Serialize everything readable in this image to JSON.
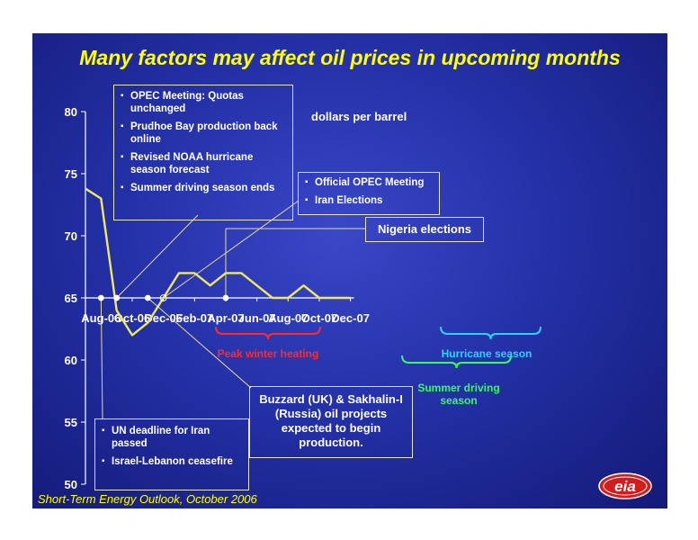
{
  "title": "Many factors may affect oil prices in upcoming months",
  "source": "Short-Term Energy Outlook, October 2006",
  "logo_text": "eia",
  "colors": {
    "background": "#2431a8",
    "title": "#ffff00",
    "line": "#f0e860",
    "axis": "#ffffff",
    "peak_winter": "#ff2a2a",
    "hurricane": "#2ad4ff",
    "summer": "#33ff55"
  },
  "chart_data": {
    "type": "line",
    "title": "Many factors may affect oil prices in upcoming months",
    "ylabel": "dollars per barrel",
    "ylim": [
      50,
      80
    ],
    "yticks": [
      50,
      55,
      60,
      65,
      70,
      75,
      80
    ],
    "x_tick_labels": [
      "Aug-06",
      "Oct-06",
      "Dec-06",
      "Feb-07",
      "Apr-07",
      "Jun-07",
      "Aug-07",
      "Oct-07",
      "Dec-07"
    ],
    "x_months": [
      "Jul-06",
      "Aug-06",
      "Sep-06",
      "Oct-06",
      "Nov-06",
      "Dec-06",
      "Jan-07",
      "Feb-07",
      "Mar-07",
      "Apr-07",
      "May-07",
      "Jun-07",
      "Jul-07",
      "Aug-07",
      "Sep-07",
      "Oct-07",
      "Nov-07",
      "Dec-07"
    ],
    "series": [
      {
        "values": [
          73.8,
          73.0,
          64.0,
          62.0,
          63.0,
          65.0,
          67.0,
          67.0,
          66.0,
          67.0,
          67.0,
          66.0,
          65.0,
          65.0,
          66.0,
          65.0,
          65.0,
          65.0
        ]
      }
    ],
    "events_marker_months": [
      "Aug-06",
      "Sep-06",
      "Nov-06",
      "Apr-07"
    ],
    "grid": false
  },
  "callouts": {
    "box1": [
      "OPEC Meeting: Quotas unchanged",
      "Prudhoe Bay production back online",
      "Revised NOAA hurricane season forecast",
      "Summer driving season ends"
    ],
    "box2": [
      "Official OPEC Meeting",
      "Iran Elections"
    ],
    "box3": "Nigeria elections",
    "box4": [
      "UN deadline for Iran passed",
      "Israel-Lebanon ceasefire"
    ],
    "box5": "Buzzard (UK) & Sakhalin-I (Russia) oil projects expected to begin production."
  },
  "periods": {
    "peak_winter": "Peak winter heating",
    "hurricane": "Hurricane season",
    "summer": "Summer driving season"
  }
}
